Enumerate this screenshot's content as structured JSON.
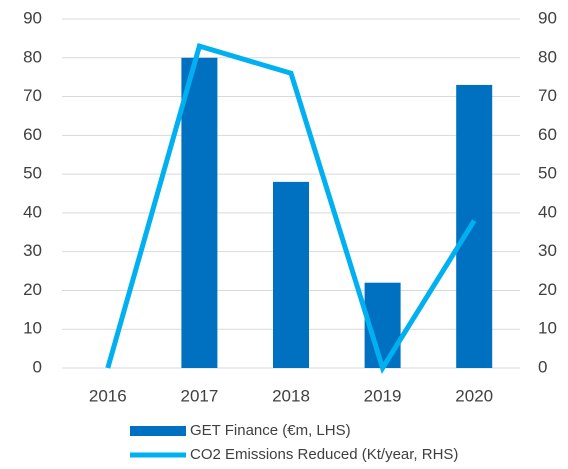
{
  "chart_data": {
    "type": "bar_line",
    "categories": [
      "2016",
      "2017",
      "2018",
      "2019",
      "2020"
    ],
    "series": [
      {
        "name": "GET Finance (€m, LHS)",
        "color": "#0070c0",
        "type": "bar",
        "values": [
          0,
          80,
          48,
          22,
          73
        ]
      },
      {
        "name": "CO2 Emissions Reduced (Kt/year, RHS)",
        "color": "#00b0f0",
        "type": "line",
        "axis": "y2",
        "values": [
          0,
          83,
          76,
          0,
          38
        ]
      }
    ],
    "ylim": [
      0,
      90
    ],
    "yticks": [
      0,
      10,
      20,
      30,
      40,
      50,
      60,
      70,
      80,
      90
    ],
    "y2lim": [
      0,
      90
    ],
    "y2ticks": [
      0,
      10,
      20,
      30,
      40,
      50,
      60,
      70,
      80,
      90
    ],
    "grid": true,
    "legend": "bottom"
  }
}
